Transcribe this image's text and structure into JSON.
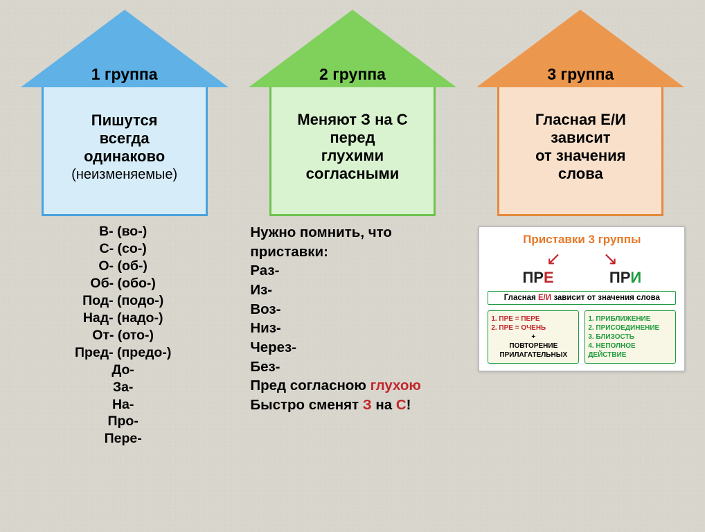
{
  "houses": [
    {
      "roof_label": "1 группа",
      "roof_border_bottom": "112px solid #5fb1e6",
      "body_bg": "#d6ecf9",
      "body_border": "#4aa2dd",
      "body_line1": "Пишутся",
      "body_line2": "всегда",
      "body_line3": "одинаково",
      "body_sub": "(неизменяемые)"
    },
    {
      "roof_label": "2 группа",
      "roof_border_bottom": "112px solid #7fd15c",
      "body_bg": "#d9f2cf",
      "body_border": "#6fc24e",
      "body_line1": "Меняют З на С",
      "body_line2": "перед",
      "body_line3": "глухими",
      "body_line4": "согласными"
    },
    {
      "roof_label": "3 группа",
      "roof_border_bottom": "112px solid #eb974e",
      "body_bg": "#f9e0cb",
      "body_border": "#e48a3d",
      "body_line1": "Гласная Е/И",
      "body_line2": "зависит",
      "body_line3": "от значения",
      "body_line4": "слова"
    }
  ],
  "col1_lines": [
    "В- (во-)",
    "С- (со-)",
    "О- (об-)",
    "Об- (обо-)",
    "Под- (подо-)",
    "Над- (надо-)",
    "От- (ото-)",
    "Пред- (предо-)",
    "До-",
    "За-",
    "На-",
    "Про-",
    "Пере-"
  ],
  "col2_intro1": "Нужно помнить, что",
  "col2_intro2": "приставки:",
  "col2_list": [
    "Раз-",
    "Из-",
    "Воз-",
    "Низ-",
    "Через-",
    "Без-"
  ],
  "col2_tail1_a": "Пред согласною ",
  "col2_tail1_b": "глухою",
  "col2_tail2_a": "Быстро сменят ",
  "col2_tail2_b": "З",
  "col2_tail2_c": " на ",
  "col2_tail2_d": "С",
  "col2_tail2_e": "!",
  "mini": {
    "title": "Приставки 3 группы",
    "left_prefix": "ПР",
    "left_suffix": "Е",
    "right_prefix": "ПР",
    "right_suffix": "И",
    "strip_a": "Гласная ",
    "strip_b": "Е/И",
    "strip_c": " зависит от значения слова",
    "box_left_l1": "1. ПРЕ = ПЕРЕ",
    "box_left_l2": "2. ПРЕ = ОЧЕНЬ",
    "box_left_l3": "+",
    "box_left_l4": "ПОВТОРЕНИЕ",
    "box_left_l5": "ПРИЛАГАТЕЛЬНЫХ",
    "box_right_l1": "1. ПРИБЛИЖЕНИЕ",
    "box_right_l2": "2. ПРИСОЕДИНЕНИЕ",
    "box_right_l3": "3. БЛИЗОСТЬ",
    "box_right_l4": "4. НЕПОЛНОЕ",
    "box_right_l5": "ДЕЙСТВИЕ"
  },
  "colors": {
    "accent_red": "#c1262d",
    "accent_green": "#1f9b3f",
    "accent_orange": "#e7792a",
    "body_text": "#000000",
    "page_bg": "#d9d6ce"
  }
}
